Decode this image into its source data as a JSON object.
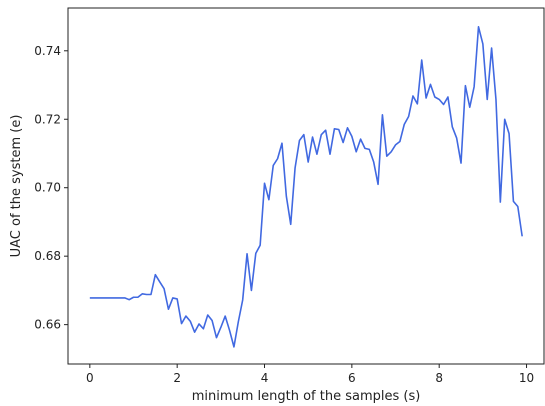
{
  "chart_data": {
    "type": "line",
    "title": "",
    "xlabel": "minimum length of the samples (s)",
    "ylabel": "UAC of the system (e)",
    "xlim": [
      -0.5,
      10.4
    ],
    "ylim": [
      0.6485,
      0.7525
    ],
    "x_ticks": [
      0,
      2,
      4,
      6,
      8,
      10
    ],
    "y_ticks": [
      0.66,
      0.68,
      0.7,
      0.72,
      0.74
    ],
    "x_tick_labels": [
      "0",
      "2",
      "4",
      "6",
      "8",
      "10"
    ],
    "y_tick_labels": [
      "0.66",
      "0.68",
      "0.70",
      "0.72",
      "0.74"
    ],
    "grid": false,
    "legend": false,
    "line_color": "#4169E1",
    "series": [
      {
        "x": [
          0.0,
          0.1,
          0.2,
          0.3,
          0.4,
          0.5,
          0.6,
          0.7,
          0.8,
          0.9,
          1.0,
          1.1,
          1.2,
          1.3,
          1.4,
          1.5,
          1.6,
          1.7,
          1.8,
          1.9,
          2.0,
          2.1,
          2.2,
          2.3,
          2.4,
          2.5,
          2.6,
          2.7,
          2.8,
          2.9,
          3.0,
          3.1,
          3.2,
          3.3,
          3.4,
          3.5,
          3.6,
          3.7,
          3.8,
          3.9,
          4.0,
          4.1,
          4.2,
          4.3,
          4.4,
          4.5,
          4.6,
          4.7,
          4.8,
          4.9,
          5.0,
          5.1,
          5.2,
          5.3,
          5.4,
          5.5,
          5.6,
          5.7,
          5.8,
          5.9,
          6.0,
          6.1,
          6.2,
          6.3,
          6.4,
          6.5,
          6.6,
          6.7,
          6.8,
          6.9,
          7.0,
          7.1,
          7.2,
          7.3,
          7.4,
          7.5,
          7.6,
          7.7,
          7.8,
          7.9,
          8.0,
          8.1,
          8.2,
          8.3,
          8.4,
          8.5,
          8.6,
          8.7,
          8.8,
          8.9,
          9.0,
          9.1,
          9.2,
          9.3,
          9.4,
          9.5,
          9.6,
          9.7,
          9.8,
          9.9
        ],
        "y": [
          0.6678,
          0.6678,
          0.6678,
          0.6678,
          0.6678,
          0.6678,
          0.6678,
          0.6678,
          0.6678,
          0.6673,
          0.668,
          0.668,
          0.669,
          0.6688,
          0.6688,
          0.6746,
          0.6725,
          0.6705,
          0.6645,
          0.6678,
          0.6675,
          0.6603,
          0.6625,
          0.661,
          0.6578,
          0.6602,
          0.6588,
          0.6628,
          0.6612,
          0.6562,
          0.6592,
          0.6625,
          0.6583,
          0.6535,
          0.6608,
          0.6672,
          0.6807,
          0.67,
          0.6808,
          0.6832,
          0.7013,
          0.6965,
          0.7065,
          0.7085,
          0.713,
          0.6975,
          0.6893,
          0.7058,
          0.7138,
          0.7155,
          0.7075,
          0.7148,
          0.7098,
          0.7155,
          0.7168,
          0.7098,
          0.7172,
          0.717,
          0.7132,
          0.7175,
          0.715,
          0.7105,
          0.7142,
          0.7115,
          0.7112,
          0.7075,
          0.701,
          0.7213,
          0.7092,
          0.7105,
          0.7125,
          0.7135,
          0.7185,
          0.7208,
          0.7268,
          0.7245,
          0.7373,
          0.7262,
          0.7302,
          0.7265,
          0.7258,
          0.7243,
          0.7265,
          0.7178,
          0.7145,
          0.7072,
          0.7298,
          0.7235,
          0.7295,
          0.747,
          0.742,
          0.7258,
          0.7408,
          0.7258,
          0.6958,
          0.72,
          0.7158,
          0.696,
          0.6945,
          0.6858
        ]
      }
    ]
  }
}
